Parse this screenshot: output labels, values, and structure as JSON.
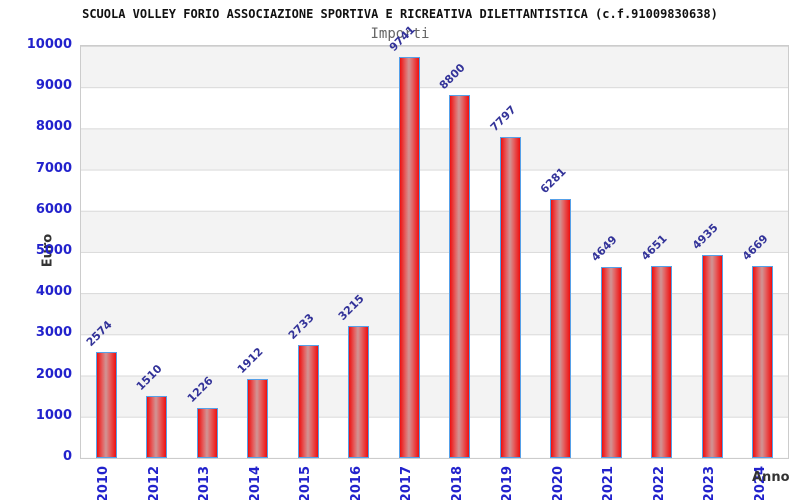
{
  "chart_data": {
    "type": "bar",
    "title": "SCUOLA VOLLEY FORIO ASSOCIAZIONE SPORTIVA E RICREATIVA DILETTANTISTICA (c.f.91009830638)",
    "subtitle": "Importi",
    "xlabel": "Anno",
    "ylabel": "Euro",
    "categories": [
      "2010",
      "2012",
      "2013",
      "2014",
      "2015",
      "2016",
      "2017",
      "2018",
      "2019",
      "2020",
      "2021",
      "2022",
      "2023",
      "2024"
    ],
    "values": [
      2574,
      1510,
      1226,
      1912,
      2733,
      3215,
      9741,
      8800,
      7797,
      6281,
      4649,
      4651,
      4935,
      4669
    ],
    "ylim": [
      0,
      10000
    ],
    "ytick_step": 1000,
    "grid": "horizontal-bands-alternating",
    "legend": "none",
    "colors": {
      "bar_fill_edge": "#ee0f0f",
      "bar_fill_center": "#d09595",
      "bar_border": "#55a0e8",
      "tick_label": "#2222cc",
      "value_label": "#333399",
      "band_gray": "#f3f3f3",
      "gridline": "#d9d9d9",
      "title_color": "#111111",
      "subtitle_color": "#666666",
      "axis_title_color": "#333333",
      "plot_border": "#cccccc",
      "background": "#ffffff"
    }
  }
}
